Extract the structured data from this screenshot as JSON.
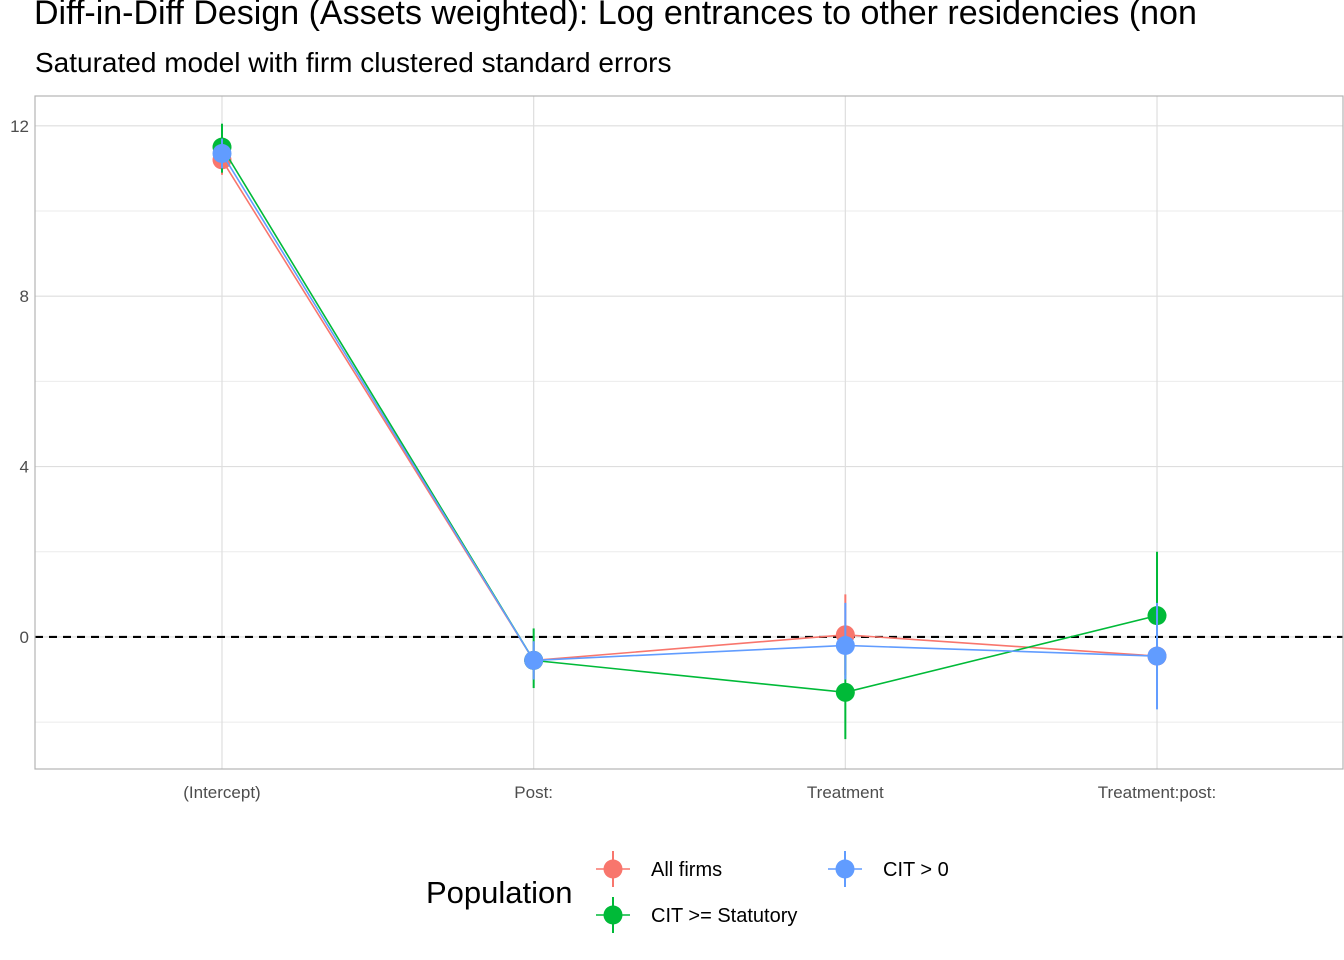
{
  "chart_data": {
    "type": "line",
    "title": "Diff-in-Diff Design (Assets weighted): Log entrances to other residencies (non",
    "subtitle": "Saturated model with firm clustered standard errors",
    "xlabel": "",
    "ylabel": "",
    "categories": [
      "(Intercept)",
      "Post:",
      "Treatment",
      "Treatment:post:"
    ],
    "yticks": [
      0,
      4,
      8,
      12
    ],
    "ylim": [
      -3.1,
      12.7
    ],
    "reference_line": {
      "y": 0,
      "style": "dashed",
      "color": "#000000"
    },
    "grid": true,
    "legend": {
      "title": "Population",
      "position": "bottom"
    },
    "series": [
      {
        "name": "All firms",
        "color": "#F8766D",
        "values": [
          11.2,
          -0.55,
          0.05,
          -0.45
        ],
        "lower": [
          10.85,
          -1.0,
          -0.9,
          -0.9
        ],
        "upper": [
          11.55,
          -0.1,
          1.0,
          0.0
        ]
      },
      {
        "name": "CIT >= Statutory",
        "color": "#00BA38",
        "values": [
          11.5,
          -0.55,
          -1.3,
          0.5
        ],
        "lower": [
          10.9,
          -1.2,
          -2.4,
          -1.0
        ],
        "upper": [
          12.05,
          0.2,
          -0.2,
          2.0
        ]
      },
      {
        "name": "CIT > 0",
        "color": "#619CFF",
        "values": [
          11.35,
          -0.55,
          -0.2,
          -0.45
        ],
        "lower": [
          11.0,
          -1.0,
          -1.0,
          -1.7
        ],
        "upper": [
          11.7,
          -0.1,
          0.8,
          0.8
        ]
      }
    ]
  }
}
